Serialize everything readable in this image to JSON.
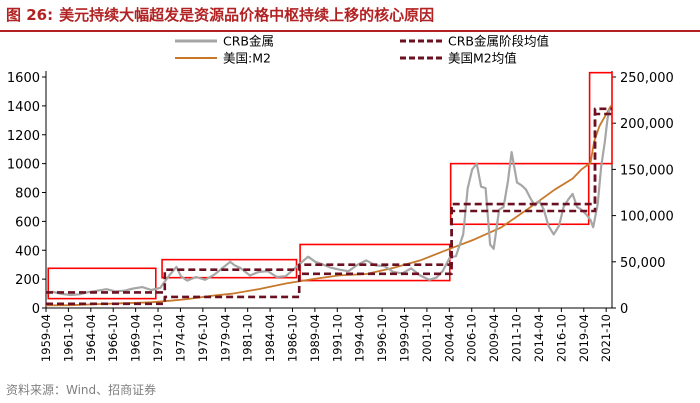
{
  "figure": {
    "number": "图 26:",
    "title": "美元持续大幅超发是资源品价格中枢持续上移的核心原因",
    "source": "资料来源：Wind、招商证券"
  },
  "colors": {
    "title": "#b22222",
    "crb": "#a6a6a6",
    "m2": "#c8782a",
    "avg": "#6b1020",
    "box": "#ff0000",
    "axis_text": "#000000"
  },
  "chart_data": {
    "type": "line",
    "legend": {
      "placement": "top",
      "entries": [
        "CRB金属",
        "CRB金属阶段均值",
        "美国:M2",
        "美国M2均值"
      ]
    },
    "x_labels": [
      "1959-04",
      "1961-10",
      "1964-04",
      "1966-10",
      "1969-04",
      "1971-10",
      "1974-04",
      "1976-10",
      "1979-04",
      "1981-10",
      "1984-04",
      "1986-10",
      "1989-04",
      "1991-10",
      "1994-04",
      "1996-10",
      "1999-04",
      "2001-10",
      "2004-04",
      "2006-10",
      "2009-04",
      "2011-10",
      "2014-04",
      "2016-10",
      "2019-04",
      "2021-10"
    ],
    "x_range": [
      1959.25,
      2022.4
    ],
    "y_left": {
      "ticks": [
        0,
        200,
        400,
        600,
        800,
        1000,
        1200,
        1400,
        1600
      ],
      "labels": [
        "0",
        "200",
        "400",
        "600",
        "800",
        "1000",
        "1200",
        "1400",
        "1600"
      ],
      "range": [
        0,
        1600
      ]
    },
    "y_right": {
      "ticks": [
        0,
        50000,
        100000,
        150000,
        200000,
        250000
      ],
      "labels": [
        "0",
        "50,000",
        "100,000",
        "150,000",
        "200,000",
        "250,000"
      ],
      "range": [
        0,
        250000
      ]
    },
    "series": [
      {
        "name": "CRB金属",
        "axis": "left",
        "style": "line",
        "points": [
          [
            1959.25,
            105
          ],
          [
            1960,
            112
          ],
          [
            1961,
            98
          ],
          [
            1962,
            90
          ],
          [
            1963,
            95
          ],
          [
            1964,
            110
          ],
          [
            1965,
            120
          ],
          [
            1966,
            130
          ],
          [
            1967,
            115
          ],
          [
            1968,
            120
          ],
          [
            1969,
            135
          ],
          [
            1970,
            145
          ],
          [
            1971,
            125
          ],
          [
            1972,
            140
          ],
          [
            1973,
            225
          ],
          [
            1973.8,
            285
          ],
          [
            1974.3,
            220
          ],
          [
            1975,
            190
          ],
          [
            1976,
            215
          ],
          [
            1977,
            195
          ],
          [
            1978,
            230
          ],
          [
            1979,
            280
          ],
          [
            1979.8,
            320
          ],
          [
            1980.3,
            295
          ],
          [
            1981,
            275
          ],
          [
            1982,
            225
          ],
          [
            1983,
            250
          ],
          [
            1984,
            255
          ],
          [
            1985,
            215
          ],
          [
            1986,
            220
          ],
          [
            1987,
            275
          ],
          [
            1988,
            330
          ],
          [
            1988.5,
            355
          ],
          [
            1989.3,
            320
          ],
          [
            1990,
            305
          ],
          [
            1991,
            280
          ],
          [
            1992,
            265
          ],
          [
            1993,
            255
          ],
          [
            1994,
            300
          ],
          [
            1995,
            330
          ],
          [
            1996,
            295
          ],
          [
            1997,
            290
          ],
          [
            1998,
            250
          ],
          [
            1999,
            240
          ],
          [
            2000,
            275
          ],
          [
            2001,
            225
          ],
          [
            2002,
            195
          ],
          [
            2002.8,
            210
          ],
          [
            2003.5,
            255
          ],
          [
            2004.3,
            350
          ],
          [
            2005,
            360
          ],
          [
            2005.8,
            510
          ],
          [
            2006.3,
            830
          ],
          [
            2006.8,
            960
          ],
          [
            2007.3,
            1000
          ],
          [
            2007.8,
            840
          ],
          [
            2008.3,
            830
          ],
          [
            2008.8,
            440
          ],
          [
            2009.2,
            410
          ],
          [
            2009.8,
            680
          ],
          [
            2010.3,
            700
          ],
          [
            2010.8,
            880
          ],
          [
            2011.2,
            1080
          ],
          [
            2011.8,
            870
          ],
          [
            2012.3,
            850
          ],
          [
            2012.8,
            820
          ],
          [
            2013.3,
            760
          ],
          [
            2013.8,
            710
          ],
          [
            2014.3,
            740
          ],
          [
            2014.8,
            680
          ],
          [
            2015.3,
            570
          ],
          [
            2015.9,
            510
          ],
          [
            2016.5,
            570
          ],
          [
            2017,
            700
          ],
          [
            2017.5,
            750
          ],
          [
            2018,
            790
          ],
          [
            2018.5,
            700
          ],
          [
            2019,
            680
          ],
          [
            2019.5,
            650
          ],
          [
            2020,
            610
          ],
          [
            2020.3,
            560
          ],
          [
            2020.8,
            720
          ],
          [
            2021.2,
            980
          ],
          [
            2021.6,
            1150
          ],
          [
            2021.9,
            1310
          ],
          [
            2022.1,
            1370
          ],
          [
            2022.3,
            1380
          ]
        ]
      },
      {
        "name": "CRB金属阶段均值",
        "axis": "left",
        "style": "dashed",
        "points": [
          [
            1959.25,
            108
          ],
          [
            1972.5,
            108
          ],
          [
            1972.5,
            265
          ],
          [
            1987.5,
            265
          ],
          [
            1987.5,
            300
          ],
          [
            2004.5,
            300
          ],
          [
            2004.5,
            720
          ],
          [
            2020.5,
            720
          ],
          [
            2020.5,
            1380
          ],
          [
            2022.4,
            1380
          ]
        ]
      },
      {
        "name": "美国:M2",
        "axis": "right",
        "style": "line",
        "points": [
          [
            1959.25,
            2900
          ],
          [
            1962,
            3000
          ],
          [
            1965,
            4200
          ],
          [
            1968,
            5200
          ],
          [
            1971,
            6200
          ],
          [
            1973,
            7800
          ],
          [
            1975,
            9600
          ],
          [
            1978,
            13500
          ],
          [
            1980,
            15500
          ],
          [
            1983,
            20500
          ],
          [
            1986,
            26500
          ],
          [
            1989,
            31300
          ],
          [
            1992,
            35300
          ],
          [
            1995,
            36800
          ],
          [
            1998,
            43400
          ],
          [
            2001,
            51500
          ],
          [
            2004,
            63000
          ],
          [
            2007,
            74000
          ],
          [
            2010,
            87000
          ],
          [
            2013,
            107000
          ],
          [
            2016,
            128000
          ],
          [
            2018,
            140000
          ],
          [
            2019,
            150000
          ],
          [
            2020,
            157000
          ],
          [
            2020.4,
            180000
          ],
          [
            2021,
            197000
          ],
          [
            2021.6,
            207000
          ],
          [
            2022.3,
            219000
          ]
        ]
      },
      {
        "name": "美国M2均值",
        "axis": "right",
        "style": "dashed",
        "points": [
          [
            1959.25,
            4500
          ],
          [
            1972.5,
            4500
          ],
          [
            1972.5,
            12000
          ],
          [
            1987.5,
            12000
          ],
          [
            1987.5,
            37000
          ],
          [
            2004.5,
            37000
          ],
          [
            2004.5,
            105000
          ],
          [
            2020.5,
            105000
          ],
          [
            2020.5,
            210000
          ],
          [
            2022.4,
            210000
          ]
        ]
      }
    ],
    "highlight_boxes": [
      {
        "x": [
          1959.5,
          1971.5
        ],
        "y_left": [
          65,
          275
        ]
      },
      {
        "x": [
          1972.2,
          1987.2
        ],
        "y_left": [
          210,
          335
        ]
      },
      {
        "x": [
          1987.6,
          2004.3
        ],
        "y_left": [
          190,
          440
        ]
      },
      {
        "x": [
          2004.4,
          2019.8
        ],
        "y_left": [
          580,
          1000
        ]
      },
      {
        "x": [
          2019.9,
          2022.4
        ],
        "y_left": [
          1000,
          1630
        ]
      }
    ]
  }
}
